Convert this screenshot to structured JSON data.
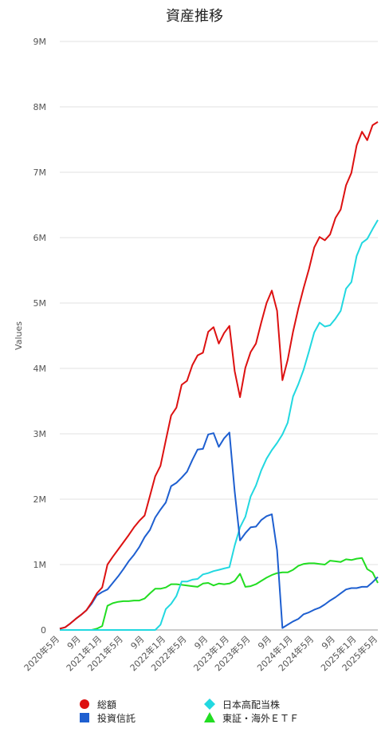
{
  "chart_data": {
    "type": "line",
    "title": "資産推移",
    "ylabel": "Values",
    "xlabel": "",
    "ylim": [
      0,
      9000000
    ],
    "y_ticks": [
      {
        "value": 0,
        "label": "0"
      },
      {
        "value": 1000000,
        "label": "1M"
      },
      {
        "value": 2000000,
        "label": "2M"
      },
      {
        "value": 3000000,
        "label": "3M"
      },
      {
        "value": 4000000,
        "label": "4M"
      },
      {
        "value": 5000000,
        "label": "5M"
      },
      {
        "value": 6000000,
        "label": "6M"
      },
      {
        "value": 7000000,
        "label": "7M"
      },
      {
        "value": 8000000,
        "label": "8M"
      },
      {
        "value": 9000000,
        "label": "9M"
      }
    ],
    "x_ticks": [
      {
        "index": 0,
        "label": "2020年5月"
      },
      {
        "index": 4,
        "label": "9月"
      },
      {
        "index": 8,
        "label": "2021年1月"
      },
      {
        "index": 12,
        "label": "2021年5月"
      },
      {
        "index": 16,
        "label": "9月"
      },
      {
        "index": 20,
        "label": "2022年1月"
      },
      {
        "index": 24,
        "label": "2022年5月"
      },
      {
        "index": 28,
        "label": "9月"
      },
      {
        "index": 32,
        "label": "2023年1月"
      },
      {
        "index": 36,
        "label": "2023年5月"
      },
      {
        "index": 40,
        "label": "9月"
      },
      {
        "index": 44,
        "label": "2024年1月"
      },
      {
        "index": 48,
        "label": "2024年5月"
      },
      {
        "index": 52,
        "label": "9月"
      },
      {
        "index": 56,
        "label": "2025年1月"
      },
      {
        "index": 60,
        "label": "2025年5月"
      }
    ],
    "grid": true,
    "legend_position": "bottom",
    "series": [
      {
        "name": "総額",
        "color": "#dd1111",
        "marker": "circle",
        "values": [
          20000,
          40000,
          100000,
          170000,
          230000,
          300000,
          420000,
          560000,
          650000,
          1000000,
          1120000,
          1230000,
          1340000,
          1450000,
          1570000,
          1670000,
          1750000,
          2050000,
          2350000,
          2510000,
          2900000,
          3280000,
          3400000,
          3750000,
          3810000,
          4050000,
          4200000,
          4240000,
          4560000,
          4630000,
          4380000,
          4540000,
          4650000,
          3960000,
          3560000,
          4010000,
          4250000,
          4380000,
          4700000,
          5000000,
          5190000,
          4880000,
          3820000,
          4130000,
          4560000,
          4920000,
          5230000,
          5520000,
          5850000,
          6010000,
          5960000,
          6050000,
          6300000,
          6430000,
          6800000,
          6990000,
          7410000,
          7620000,
          7490000,
          7720000,
          7770000
        ]
      },
      {
        "name": "投資信託",
        "color": "#1e5fd0",
        "marker": "square",
        "values": [
          20000,
          40000,
          100000,
          170000,
          230000,
          300000,
          400000,
          530000,
          580000,
          620000,
          720000,
          820000,
          930000,
          1050000,
          1150000,
          1270000,
          1420000,
          1530000,
          1720000,
          1840000,
          1950000,
          2200000,
          2250000,
          2330000,
          2420000,
          2600000,
          2760000,
          2770000,
          2990000,
          3010000,
          2800000,
          2930000,
          3020000,
          2120000,
          1370000,
          1480000,
          1570000,
          1580000,
          1680000,
          1740000,
          1770000,
          1220000,
          30000,
          80000,
          130000,
          170000,
          240000,
          270000,
          310000,
          340000,
          390000,
          450000,
          500000,
          560000,
          620000,
          640000,
          640000,
          660000,
          660000,
          730000,
          810000
        ]
      },
      {
        "name": "日本高配当株",
        "color": "#22d8e0",
        "marker": "diamond",
        "values": [
          0,
          0,
          0,
          0,
          0,
          0,
          0,
          0,
          0,
          0,
          0,
          0,
          0,
          0,
          0,
          0,
          0,
          0,
          0,
          80000,
          320000,
          400000,
          520000,
          740000,
          740000,
          770000,
          780000,
          850000,
          870000,
          900000,
          920000,
          940000,
          960000,
          1290000,
          1570000,
          1730000,
          2040000,
          2210000,
          2440000,
          2620000,
          2750000,
          2860000,
          2990000,
          3170000,
          3570000,
          3760000,
          3980000,
          4260000,
          4550000,
          4700000,
          4640000,
          4660000,
          4760000,
          4880000,
          5220000,
          5320000,
          5720000,
          5920000,
          5980000,
          6130000,
          6270000
        ]
      },
      {
        "name": "東証・海外ＥＴＦ",
        "color": "#22dd22",
        "marker": "triangle",
        "values": [
          0,
          0,
          0,
          0,
          0,
          0,
          0,
          20000,
          60000,
          370000,
          410000,
          430000,
          440000,
          440000,
          450000,
          450000,
          480000,
          560000,
          630000,
          630000,
          650000,
          700000,
          700000,
          690000,
          680000,
          670000,
          660000,
          710000,
          720000,
          680000,
          710000,
          700000,
          710000,
          750000,
          860000,
          660000,
          670000,
          700000,
          750000,
          800000,
          840000,
          870000,
          880000,
          880000,
          920000,
          980000,
          1010000,
          1020000,
          1020000,
          1010000,
          1000000,
          1060000,
          1050000,
          1040000,
          1080000,
          1070000,
          1090000,
          1100000,
          930000,
          880000,
          720000
        ]
      }
    ]
  }
}
